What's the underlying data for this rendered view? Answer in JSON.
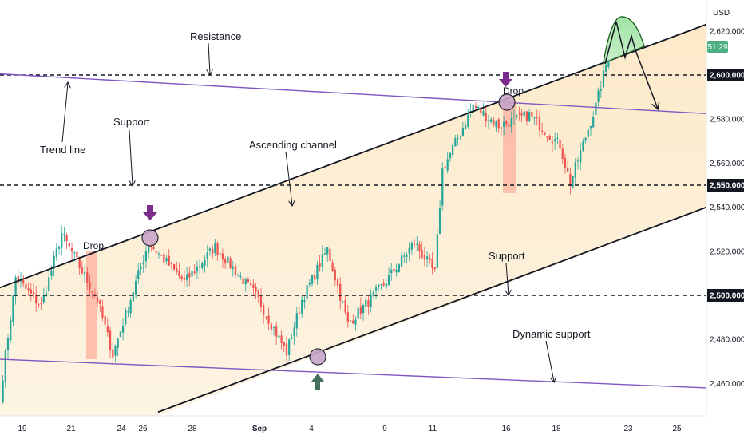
{
  "chart_data": {
    "type": "candlestick",
    "currency": "USD",
    "countdown": "51:29",
    "y_ticks": [
      2460,
      2480,
      2500,
      2520,
      2540,
      2550,
      2560,
      2580,
      2600,
      2620
    ],
    "y_tick_labels": [
      "2,460.000",
      "2,480.000",
      "2,500.000",
      "2,520.000",
      "2,540.000",
      "2,550.000",
      "2,560.000",
      "2,580.000",
      "2,600.000",
      "2,620.000"
    ],
    "highlighted_levels": [
      "2,500.000",
      "2,550.000",
      "2,600.000"
    ],
    "x_ticks": [
      "19",
      "21",
      "24",
      "26",
      "28",
      "Sep",
      "4",
      "9",
      "11",
      "16",
      "18",
      "23",
      "25"
    ],
    "ohlc_segments": [
      {
        "from": 2455,
        "to": 2508,
        "n": 6
      },
      {
        "from": 2508,
        "to": 2495,
        "n": 10
      },
      {
        "from": 2495,
        "to": 2528,
        "n": 8
      },
      {
        "from": 2528,
        "to": 2498,
        "n": 14
      },
      {
        "from": 2498,
        "to": 2473,
        "n": 6
      },
      {
        "from": 2473,
        "to": 2524,
        "n": 14
      },
      {
        "from": 2524,
        "to": 2506,
        "n": 14
      },
      {
        "from": 2506,
        "to": 2522,
        "n": 12
      },
      {
        "from": 2522,
        "to": 2500,
        "n": 16
      },
      {
        "from": 2500,
        "to": 2474,
        "n": 12
      },
      {
        "from": 2474,
        "to": 2498,
        "n": 6
      },
      {
        "from": 2498,
        "to": 2521,
        "n": 10
      },
      {
        "from": 2521,
        "to": 2487,
        "n": 8
      },
      {
        "from": 2487,
        "to": 2505,
        "n": 14
      },
      {
        "from": 2505,
        "to": 2524,
        "n": 12
      },
      {
        "from": 2524,
        "to": 2510,
        "n": 8
      },
      {
        "from": 2510,
        "to": 2557,
        "n": 3
      },
      {
        "from": 2557,
        "to": 2586,
        "n": 12
      },
      {
        "from": 2586,
        "to": 2577,
        "n": 10
      },
      {
        "from": 2577,
        "to": 2582,
        "n": 12
      },
      {
        "from": 2582,
        "to": 2568,
        "n": 12
      },
      {
        "from": 2568,
        "to": 2551,
        "n": 4
      },
      {
        "from": 2551,
        "to": 2586,
        "n": 10
      },
      {
        "from": 2586,
        "to": 2609,
        "n": 5
      }
    ],
    "lines": {
      "resistance": 2600,
      "support_mid": 2550,
      "support_low": 2500,
      "trend_line": {
        "x0": 0,
        "y0": 2600.5,
        "x1": 885,
        "y1": 2582.5
      },
      "dynamic_support": {
        "x0": 0,
        "y0": 2471,
        "x1": 885,
        "y1": 2458
      },
      "channel_upper": {
        "x0": 0,
        "y0": 2503.5,
        "x1": 885,
        "y1": 2623
      },
      "channel_lower": {
        "x0": 198,
        "y0": 2447,
        "x1": 885,
        "y1": 2540
      }
    },
    "annotations": {
      "resistance": "Resistance",
      "trend_line": "Trend line",
      "support_upper": "Support",
      "ascending_channel": "Ascending channel",
      "drop_left": "Drop",
      "drop_right": "Drop",
      "support_lower": "Support",
      "dynamic_support": "Dynamic support"
    }
  }
}
